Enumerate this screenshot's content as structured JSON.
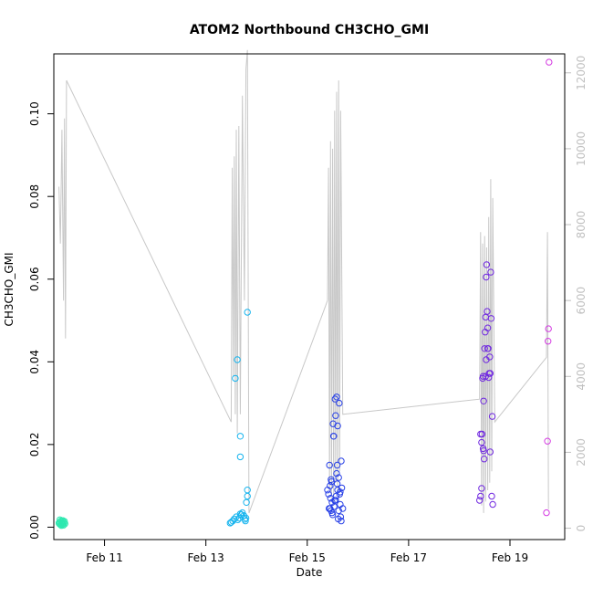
{
  "chart_data": {
    "type": "scatter",
    "title": "ATOM2 Northbound CH3CHO_GMI",
    "xlabel": "Date",
    "ylabel": "CH3CHO_GMI",
    "y2label": "",
    "x_range_days": [
      10.0,
      20.08
    ],
    "ylim": [
      -0.003,
      0.1145
    ],
    "y2lim": [
      -300,
      12500
    ],
    "x_ticks": [
      {
        "day": 11,
        "label": "Feb 11"
      },
      {
        "day": 13,
        "label": "Feb 13"
      },
      {
        "day": 15,
        "label": "Feb 15"
      },
      {
        "day": 17,
        "label": "Feb 17"
      },
      {
        "day": 19,
        "label": "Feb 19"
      }
    ],
    "y_ticks": [
      {
        "value": 0.0,
        "label": "0.00"
      },
      {
        "value": 0.02,
        "label": "0.02"
      },
      {
        "value": 0.04,
        "label": "0.04"
      },
      {
        "value": 0.06,
        "label": "0.06"
      },
      {
        "value": 0.08,
        "label": "0.08"
      },
      {
        "value": 0.1,
        "label": "0.10"
      }
    ],
    "y2_ticks": [
      {
        "value": 0,
        "label": "0"
      },
      {
        "value": 2000,
        "label": "2000"
      },
      {
        "value": 4000,
        "label": "4000"
      },
      {
        "value": 6000,
        "label": "6000"
      },
      {
        "value": 8000,
        "label": "8000"
      },
      {
        "value": 10000,
        "label": "10000"
      },
      {
        "value": 12000,
        "label": "12000"
      }
    ],
    "grid": false,
    "altitude_line_color": "#c8c8c8",
    "altitude_trace": [
      [
        10.1,
        9000
      ],
      [
        10.13,
        7500
      ],
      [
        10.16,
        10500
      ],
      [
        10.19,
        6000
      ],
      [
        10.21,
        10800
      ],
      [
        10.23,
        5000
      ],
      [
        10.25,
        11800
      ],
      [
        13.5,
        2800
      ],
      [
        13.52,
        9500
      ],
      [
        13.54,
        4000
      ],
      [
        13.56,
        9800
      ],
      [
        13.58,
        3000
      ],
      [
        13.6,
        10500
      ],
      [
        13.62,
        2500
      ],
      [
        13.65,
        10600
      ],
      [
        13.68,
        3000
      ],
      [
        13.72,
        11400
      ],
      [
        13.76,
        6000
      ],
      [
        13.79,
        12100
      ],
      [
        13.82,
        12600
      ],
      [
        13.85,
        400
      ],
      [
        15.4,
        6000
      ],
      [
        15.42,
        9500
      ],
      [
        15.44,
        1000
      ],
      [
        15.46,
        10200
      ],
      [
        15.48,
        800
      ],
      [
        15.5,
        10000
      ],
      [
        15.52,
        600
      ],
      [
        15.54,
        11000
      ],
      [
        15.56,
        1200
      ],
      [
        15.58,
        11500
      ],
      [
        15.6,
        900
      ],
      [
        15.62,
        11800
      ],
      [
        15.64,
        1500
      ],
      [
        15.66,
        11000
      ],
      [
        15.7,
        3000
      ],
      [
        18.4,
        3400
      ],
      [
        18.42,
        7800
      ],
      [
        18.44,
        600
      ],
      [
        18.46,
        7500
      ],
      [
        18.48,
        400
      ],
      [
        18.5,
        7700
      ],
      [
        18.52,
        700
      ],
      [
        18.54,
        7400
      ],
      [
        18.56,
        1000
      ],
      [
        18.58,
        8200
      ],
      [
        18.6,
        1200
      ],
      [
        18.62,
        9200
      ],
      [
        18.64,
        1500
      ],
      [
        18.66,
        8700
      ],
      [
        18.7,
        2800
      ],
      [
        19.72,
        4500
      ],
      [
        19.74,
        7800
      ],
      [
        19.76,
        500
      ]
    ],
    "series": [
      {
        "color": "#2ee8b0",
        "points": [
          [
            10.1,
            0.001
          ],
          [
            10.11,
            0.0008
          ],
          [
            10.12,
            0.0012
          ],
          [
            10.13,
            0.0006
          ],
          [
            10.14,
            0.0015
          ],
          [
            10.15,
            0.0009
          ],
          [
            10.16,
            0.0011
          ],
          [
            10.17,
            0.0007
          ],
          [
            10.18,
            0.0013
          ],
          [
            10.19,
            0.0005
          ],
          [
            10.2,
            0.001
          ],
          [
            10.21,
            0.0014
          ],
          [
            10.22,
            0.0008
          ],
          [
            10.12,
            0.0018
          ],
          [
            10.15,
            0.0004
          ],
          [
            10.18,
            0.0016
          ]
        ]
      },
      {
        "color": "#16b4ee",
        "points": [
          [
            13.48,
            0.001
          ],
          [
            13.5,
            0.0012
          ],
          [
            13.53,
            0.0015
          ],
          [
            13.56,
            0.002
          ],
          [
            13.6,
            0.0025
          ],
          [
            13.63,
            0.0018
          ],
          [
            13.66,
            0.0022
          ],
          [
            13.7,
            0.003
          ],
          [
            13.72,
            0.0035
          ],
          [
            13.75,
            0.0028
          ],
          [
            13.77,
            0.0019
          ],
          [
            13.79,
            0.0022
          ],
          [
            13.8,
            0.006
          ],
          [
            13.82,
            0.009
          ],
          [
            13.78,
            0.0015
          ],
          [
            13.68,
            0.0032
          ],
          [
            13.58,
            0.036
          ],
          [
            13.62,
            0.0405
          ],
          [
            13.68,
            0.022
          ],
          [
            13.68,
            0.017
          ],
          [
            13.82,
            0.052
          ],
          [
            13.82,
            0.0075
          ]
        ]
      },
      {
        "color": "#2840e6",
        "points": [
          [
            15.4,
            0.009
          ],
          [
            15.42,
            0.008
          ],
          [
            15.44,
            0.015
          ],
          [
            15.45,
            0.01
          ],
          [
            15.46,
            0.007
          ],
          [
            15.47,
            0.004
          ],
          [
            15.48,
            0.011
          ],
          [
            15.49,
            0.006
          ],
          [
            15.5,
            0.003
          ],
          [
            15.51,
            0.025
          ],
          [
            15.52,
            0.022
          ],
          [
            15.53,
            0.005
          ],
          [
            15.54,
            0.0065
          ],
          [
            15.55,
            0.031
          ],
          [
            15.56,
            0.027
          ],
          [
            15.57,
            0.0075
          ],
          [
            15.58,
            0.013
          ],
          [
            15.59,
            0.015
          ],
          [
            15.6,
            0.009
          ],
          [
            15.61,
            0.002
          ],
          [
            15.62,
            0.004
          ],
          [
            15.63,
            0.03
          ],
          [
            15.64,
            0.008
          ],
          [
            15.65,
            0.0055
          ],
          [
            15.66,
            0.0025
          ],
          [
            15.67,
            0.016
          ],
          [
            15.68,
            0.0095
          ],
          [
            15.7,
            0.0045
          ],
          [
            15.52,
            0.022
          ],
          [
            15.47,
            0.0115
          ],
          [
            15.58,
            0.0315
          ],
          [
            15.6,
            0.0245
          ],
          [
            15.43,
            0.0045
          ],
          [
            15.65,
            0.0085
          ],
          [
            15.45,
            0.0045
          ],
          [
            15.56,
            0.0065
          ],
          [
            15.59,
            0.0105
          ],
          [
            15.62,
            0.012
          ],
          [
            15.67,
            0.0015
          ],
          [
            15.49,
            0.0035
          ]
        ]
      },
      {
        "color": "#7028e0",
        "points": [
          [
            18.4,
            0.0065
          ],
          [
            18.42,
            0.0075
          ],
          [
            18.44,
            0.0205
          ],
          [
            18.45,
            0.0225
          ],
          [
            18.46,
            0.036
          ],
          [
            18.47,
            0.019
          ],
          [
            18.48,
            0.0305
          ],
          [
            18.49,
            0.0165
          ],
          [
            18.5,
            0.0432
          ],
          [
            18.51,
            0.0472
          ],
          [
            18.52,
            0.0508
          ],
          [
            18.53,
            0.0605
          ],
          [
            18.54,
            0.0635
          ],
          [
            18.55,
            0.0522
          ],
          [
            18.56,
            0.0482
          ],
          [
            18.57,
            0.0432
          ],
          [
            18.58,
            0.0362
          ],
          [
            18.59,
            0.0372
          ],
          [
            18.6,
            0.0412
          ],
          [
            18.61,
            0.0182
          ],
          [
            18.62,
            0.0617
          ],
          [
            18.63,
            0.0505
          ],
          [
            18.64,
            0.0075
          ],
          [
            18.65,
            0.0268
          ],
          [
            18.66,
            0.0055
          ],
          [
            18.42,
            0.0225
          ],
          [
            18.44,
            0.0094
          ],
          [
            18.48,
            0.0185
          ],
          [
            18.52,
            0.0365
          ],
          [
            18.56,
            0.0432
          ],
          [
            18.61,
            0.0372
          ],
          [
            18.47,
            0.0365
          ],
          [
            18.53,
            0.0405
          ]
        ]
      },
      {
        "color": "#d43ae2",
        "points": [
          [
            19.72,
            0.0035
          ],
          [
            19.74,
            0.0208
          ],
          [
            19.75,
            0.045
          ],
          [
            19.76,
            0.048
          ],
          [
            19.77,
            0.1125
          ]
        ]
      }
    ]
  }
}
